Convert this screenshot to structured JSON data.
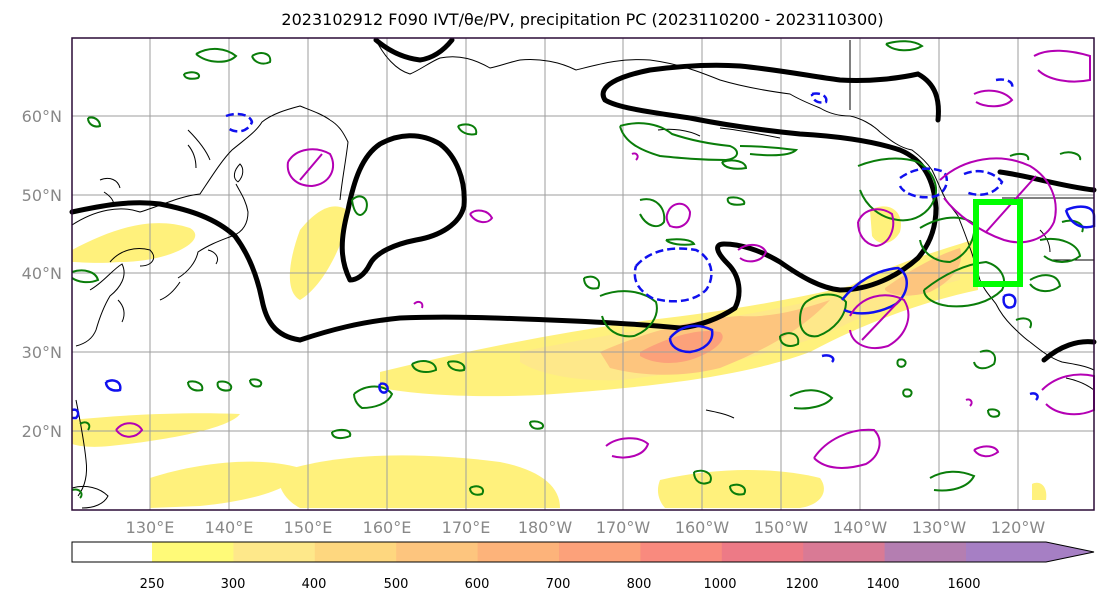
{
  "title": "2023102912 F090 IVT/θₑ/PV, precipitation PC (2023110200 - 2023110300)",
  "title_display": "2023102912 F090 IVT/θe/PV, precipitation PC (2023110200 - 2023110300)",
  "map": {
    "lat_labels": [
      "60°N",
      "50°N",
      "40°N",
      "30°N",
      "20°N"
    ],
    "lon_labels": [
      "130°E",
      "140°E",
      "150°E",
      "160°E",
      "170°E",
      "180°W",
      "170°W",
      "160°W",
      "150°W",
      "140°W",
      "130°W",
      "120°W"
    ],
    "colors": {
      "frame": "#2a0a36",
      "coast": "#000000",
      "grid": "#9e9e9e",
      "pv_contour": "#000000",
      "precip_green": "#0a7d0a",
      "precip_blue": "#1010ee",
      "precip_magenta": "#b400b4",
      "target_box": "#00ff00",
      "tick_label": "#888888"
    }
  },
  "colorbar": {
    "levels": [
      "250",
      "300",
      "400",
      "500",
      "600",
      "700",
      "800",
      "1000",
      "1200",
      "1400",
      "1600"
    ],
    "colors": [
      "#fffa78",
      "#fee88a",
      "#fed77f",
      "#fdc57e",
      "#fdb37a",
      "#fca17a",
      "#f98a7e",
      "#ed7a86",
      "#d97a95",
      "#b47eb1",
      "#a67fc4"
    ]
  }
}
